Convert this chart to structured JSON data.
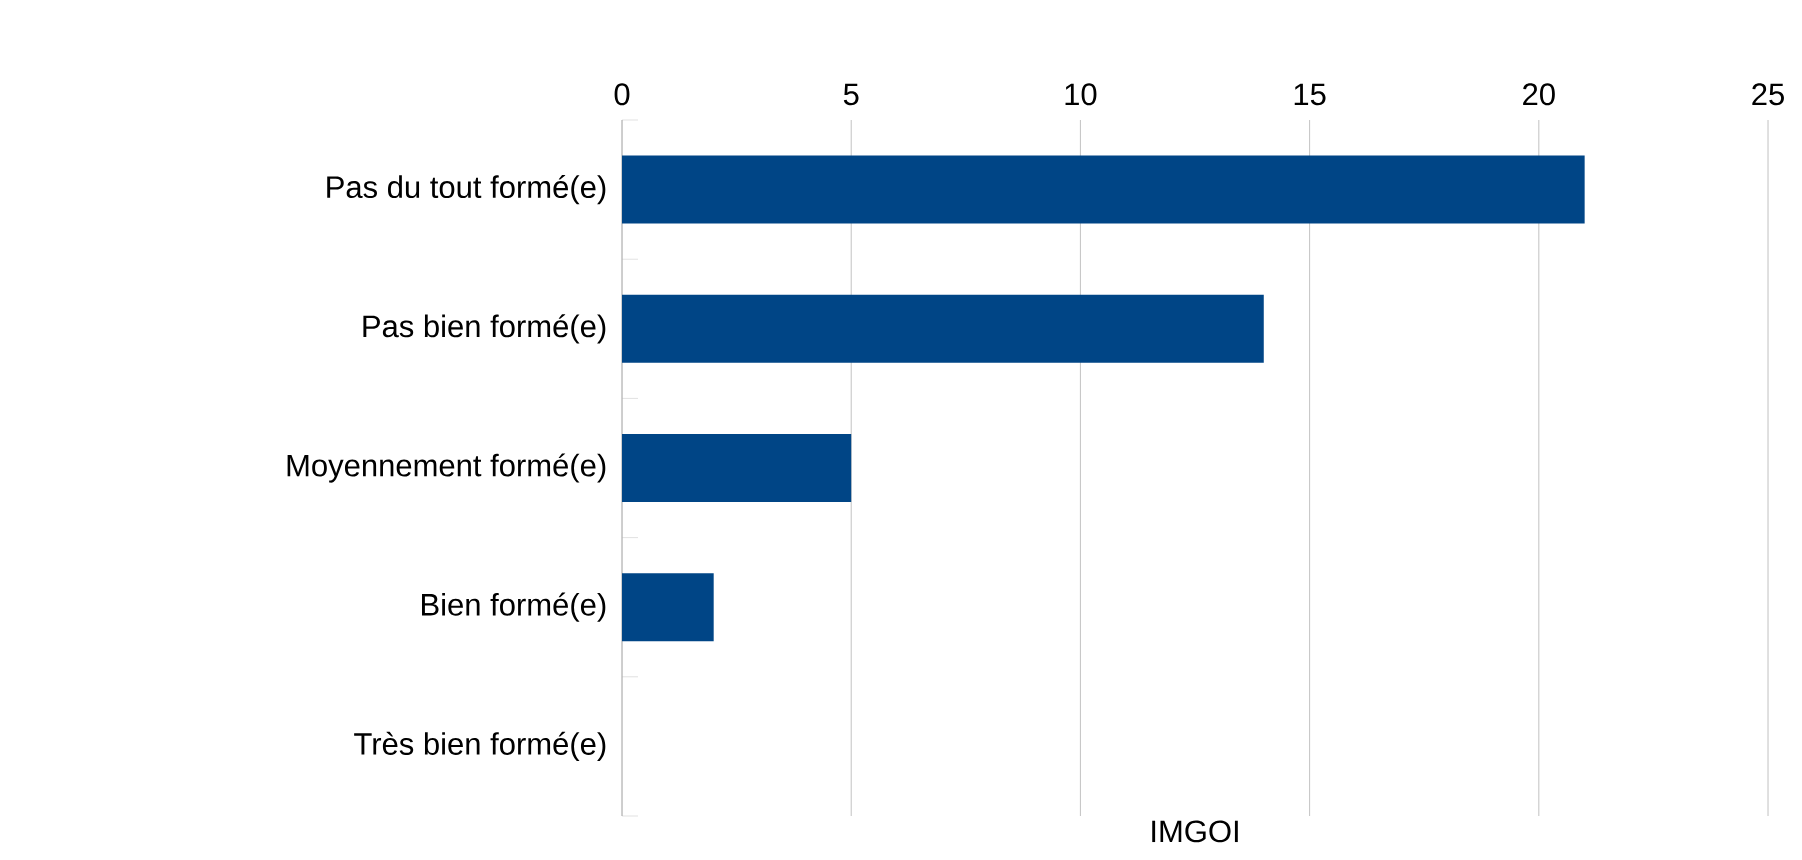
{
  "chart_data": {
    "type": "bar",
    "orientation": "horizontal",
    "xlabel": "IMGOI",
    "categories": [
      "Pas du tout formé(e)",
      "Pas bien formé(e)",
      "Moyennement formé(e)",
      "Bien formé(e)",
      "Très bien formé(e)"
    ],
    "values": [
      21,
      14,
      5,
      2,
      0
    ],
    "color": "#004586",
    "xlim": [
      0,
      25
    ],
    "xticks": [
      0,
      5,
      10,
      15,
      20,
      25
    ],
    "grid": "x"
  }
}
